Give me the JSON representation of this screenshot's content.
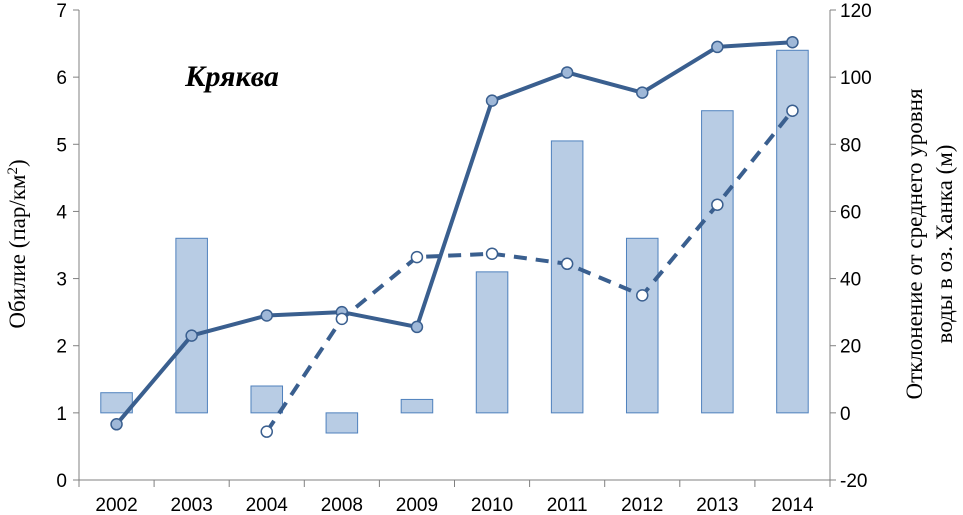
{
  "chart_data": {
    "type": "bar",
    "title": "Кряква",
    "categories": [
      "2002",
      "2003",
      "2004",
      "2008",
      "2009",
      "2010",
      "2011",
      "2012",
      "2013",
      "2014"
    ],
    "ylabel_left": {
      "main": "Обилие (пар/км",
      "sup": "2",
      "tail": ")"
    },
    "ylabel_right": {
      "line1": "Отклонение от среднего уровня",
      "line2": "воды в оз. Ханка (м)"
    },
    "ylim_left": [
      0,
      7
    ],
    "ylim_right": [
      -20,
      120
    ],
    "yticks_left": [
      0,
      1,
      2,
      3,
      4,
      5,
      6,
      7
    ],
    "yticks_right": [
      -20,
      0,
      20,
      40,
      60,
      80,
      100,
      120
    ],
    "grid": false,
    "legend": "none",
    "bars_axis": "right",
    "bars": [
      6,
      52,
      8,
      -6,
      4,
      42,
      81,
      52,
      90,
      108
    ],
    "series": [
      {
        "style": "solid",
        "marker": "filled",
        "axis": "left",
        "values": [
          0.83,
          2.15,
          2.45,
          2.5,
          2.28,
          5.65,
          6.07,
          5.77,
          6.45,
          6.52
        ]
      },
      {
        "style": "dashed",
        "marker": "open",
        "axis": "left",
        "values": [
          null,
          null,
          0.72,
          2.4,
          3.32,
          3.37,
          3.22,
          2.75,
          4.1,
          5.5
        ]
      }
    ],
    "colors": {
      "bar_fill": "#b8cce4",
      "bar_stroke": "#4f81bd",
      "line": "#3a5f8f",
      "axis": "#808080"
    }
  }
}
